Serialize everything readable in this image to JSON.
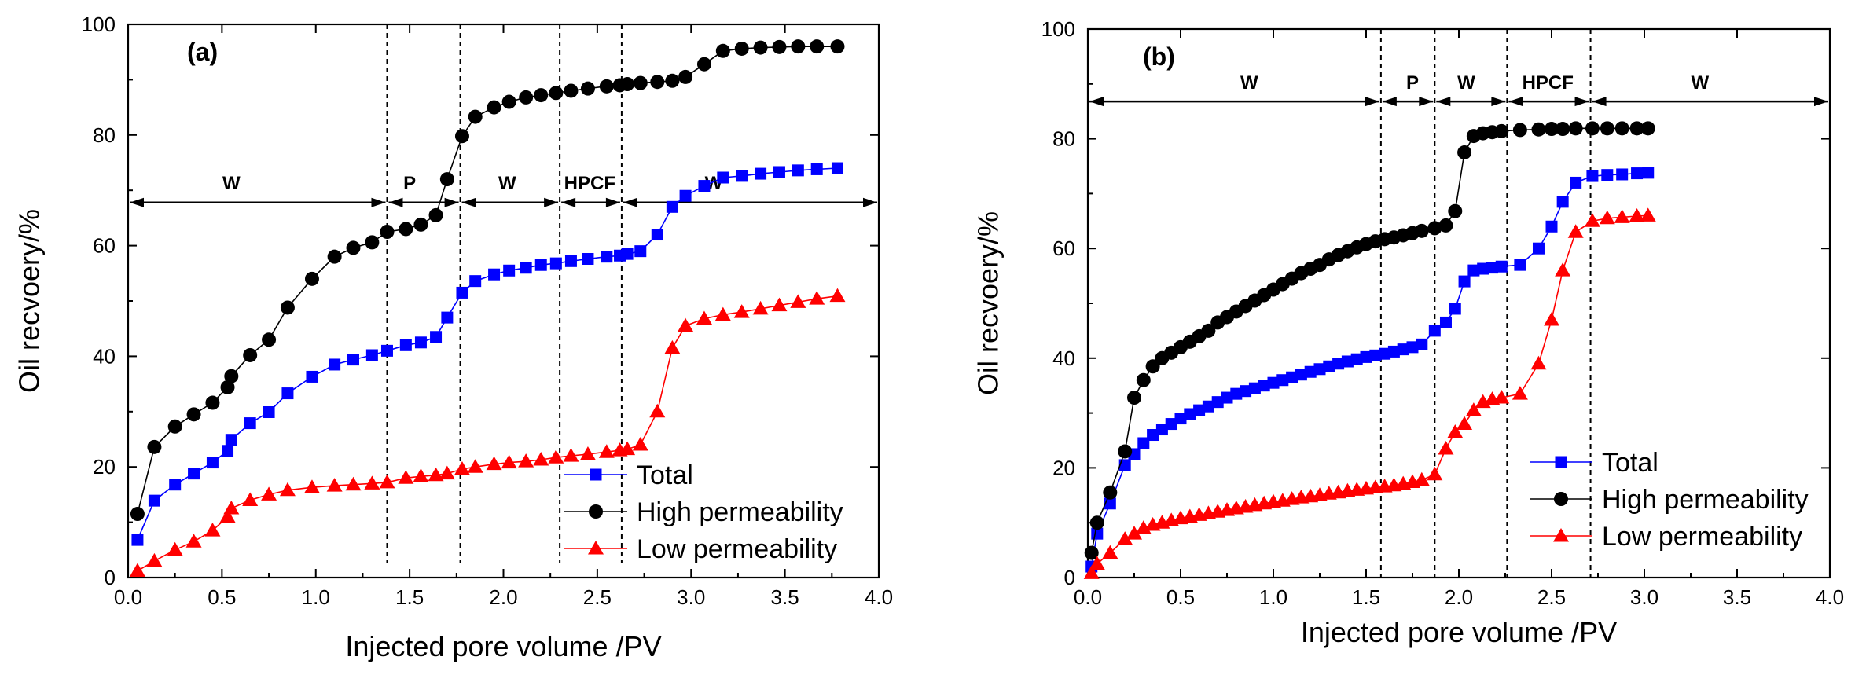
{
  "chart_data": [
    {
      "type": "line",
      "panel_label": "(a)",
      "xlabel": "Injected pore volume /PV",
      "ylabel": "Oil recvoery/%",
      "xlim": [
        0.0,
        4.0
      ],
      "ylim": [
        0,
        100
      ],
      "x_ticks": [
        "0.0",
        "0.5",
        "1.0",
        "1.5",
        "2.0",
        "2.5",
        "3.0",
        "3.5",
        "4.0"
      ],
      "y_ticks": [
        "0",
        "20",
        "40",
        "60",
        "80",
        "100"
      ],
      "legend": [
        "Total",
        "High permeability",
        "Low permeability"
      ],
      "legend_position": "bottom-right",
      "stage_boundaries": [
        1.38,
        1.77,
        2.3,
        2.63
      ],
      "stage_arrow_y": 67.8,
      "stages": [
        {
          "label": "W",
          "from": 0.0,
          "to": 1.38,
          "label_x": 0.55,
          "label_y": 71
        },
        {
          "label": "P",
          "from": 1.38,
          "to": 1.77,
          "label_x": 1.5,
          "label_y": 71
        },
        {
          "label": "W",
          "from": 1.77,
          "to": 2.3,
          "label_x": 2.02,
          "label_y": 71
        },
        {
          "label": "HPCF",
          "from": 2.3,
          "to": 2.63,
          "label_x": 2.46,
          "label_y": 71
        },
        {
          "label": "W",
          "from": 2.63,
          "to": 4.0,
          "label_x": 3.12,
          "label_y": 71
        }
      ],
      "series": [
        {
          "name": "Total",
          "color": "#0000ff",
          "marker": "square",
          "x": [
            0.05,
            0.14,
            0.25,
            0.35,
            0.45,
            0.53,
            0.55,
            0.65,
            0.75,
            0.85,
            0.98,
            1.1,
            1.2,
            1.3,
            1.38,
            1.48,
            1.56,
            1.64,
            1.7,
            1.78,
            1.85,
            1.95,
            2.03,
            2.12,
            2.2,
            2.28,
            2.36,
            2.45,
            2.55,
            2.62,
            2.66,
            2.73,
            2.82,
            2.9,
            2.97,
            3.07,
            3.17,
            3.27,
            3.37,
            3.47,
            3.57,
            3.67,
            3.78
          ],
          "y": [
            6.8,
            13.9,
            16.8,
            18.8,
            20.8,
            22.9,
            24.9,
            27.9,
            29.9,
            33.3,
            36.3,
            38.5,
            39.4,
            40.2,
            41.0,
            42.0,
            42.5,
            43.5,
            47.0,
            51.5,
            53.6,
            54.8,
            55.5,
            56.0,
            56.5,
            56.8,
            57.2,
            57.6,
            58.0,
            58.2,
            58.5,
            59.0,
            62.0,
            67.0,
            69.0,
            70.8,
            72.3,
            72.6,
            73.0,
            73.3,
            73.6,
            73.8,
            74.0
          ]
        },
        {
          "name": "High permeability",
          "color": "#000000",
          "marker": "circle",
          "x": [
            0.05,
            0.14,
            0.25,
            0.35,
            0.45,
            0.53,
            0.55,
            0.65,
            0.75,
            0.85,
            0.98,
            1.1,
            1.2,
            1.3,
            1.38,
            1.48,
            1.56,
            1.64,
            1.7,
            1.78,
            1.85,
            1.95,
            2.03,
            2.12,
            2.2,
            2.28,
            2.36,
            2.45,
            2.55,
            2.62,
            2.66,
            2.73,
            2.82,
            2.9,
            2.97,
            3.07,
            3.17,
            3.27,
            3.37,
            3.47,
            3.57,
            3.67,
            3.78
          ],
          "y": [
            11.5,
            23.6,
            27.3,
            29.5,
            31.6,
            34.4,
            36.4,
            40.2,
            43.0,
            48.8,
            54.0,
            58.0,
            59.6,
            60.6,
            62.5,
            63.0,
            63.8,
            65.5,
            72.0,
            79.8,
            83.3,
            85.0,
            86.0,
            86.8,
            87.2,
            87.6,
            88.0,
            88.4,
            88.8,
            89.0,
            89.2,
            89.4,
            89.6,
            89.8,
            90.5,
            92.8,
            95.2,
            95.6,
            95.8,
            95.9,
            96.0,
            96.0,
            96.0
          ]
        },
        {
          "name": "Low permeability",
          "color": "#ff0000",
          "marker": "triangle",
          "x": [
            0.05,
            0.14,
            0.25,
            0.35,
            0.45,
            0.53,
            0.55,
            0.65,
            0.75,
            0.85,
            0.98,
            1.1,
            1.2,
            1.3,
            1.38,
            1.48,
            1.56,
            1.64,
            1.7,
            1.78,
            1.85,
            1.95,
            2.03,
            2.12,
            2.2,
            2.28,
            2.36,
            2.45,
            2.55,
            2.62,
            2.66,
            2.73,
            2.82,
            2.9,
            2.97,
            3.07,
            3.17,
            3.27,
            3.37,
            3.47,
            3.57,
            3.67,
            3.78
          ],
          "y": [
            1.2,
            3.0,
            5.0,
            6.5,
            8.5,
            11.0,
            12.5,
            14.0,
            15.0,
            15.8,
            16.3,
            16.6,
            16.8,
            17.0,
            17.2,
            18.0,
            18.3,
            18.5,
            18.8,
            19.6,
            20.0,
            20.5,
            20.8,
            21.0,
            21.3,
            21.7,
            22.0,
            22.3,
            22.7,
            23.0,
            23.2,
            24.0,
            30.0,
            41.5,
            45.5,
            46.8,
            47.5,
            48.0,
            48.6,
            49.2,
            49.8,
            50.4,
            50.9
          ]
        }
      ]
    },
    {
      "type": "line",
      "panel_label": "(b)",
      "xlabel": "Injected pore volume /PV",
      "ylabel": "Oil recvoery/%",
      "xlim": [
        0.0,
        4.0
      ],
      "ylim": [
        0,
        100
      ],
      "x_ticks": [
        "0.0",
        "0.5",
        "1.0",
        "1.5",
        "2.0",
        "2.5",
        "3.0",
        "3.5",
        "4.0"
      ],
      "y_ticks": [
        "0",
        "20",
        "40",
        "60",
        "80",
        "100"
      ],
      "legend": [
        "Total",
        "High permeability",
        "Low permeability"
      ],
      "legend_position": "bottom-right",
      "stage_boundaries": [
        1.58,
        1.87,
        2.26,
        2.71
      ],
      "stage_arrow_y": 86.8,
      "stages": [
        {
          "label": "W",
          "from": 0.0,
          "to": 1.58,
          "label_x": 0.87,
          "label_y": 90
        },
        {
          "label": "P",
          "from": 1.58,
          "to": 1.87,
          "label_x": 1.75,
          "label_y": 90
        },
        {
          "label": "W",
          "from": 1.87,
          "to": 2.26,
          "label_x": 2.04,
          "label_y": 90
        },
        {
          "label": "HPCF",
          "from": 2.26,
          "to": 2.71,
          "label_x": 2.48,
          "label_y": 90
        },
        {
          "label": "W",
          "from": 2.71,
          "to": 4.0,
          "label_x": 3.3,
          "label_y": 90
        }
      ],
      "series": [
        {
          "name": "Total",
          "color": "#0000ff",
          "marker": "square",
          "x": [
            0.02,
            0.05,
            0.12,
            0.2,
            0.25,
            0.3,
            0.35,
            0.4,
            0.45,
            0.5,
            0.55,
            0.6,
            0.65,
            0.7,
            0.75,
            0.8,
            0.85,
            0.9,
            0.95,
            1.0,
            1.05,
            1.1,
            1.15,
            1.2,
            1.25,
            1.3,
            1.35,
            1.4,
            1.45,
            1.5,
            1.55,
            1.6,
            1.65,
            1.7,
            1.75,
            1.8,
            1.87,
            1.93,
            1.98,
            2.03,
            2.08,
            2.13,
            2.18,
            2.23,
            2.33,
            2.43,
            2.5,
            2.56,
            2.63,
            2.72,
            2.8,
            2.88,
            2.96,
            3.02
          ],
          "y": [
            2.0,
            8.0,
            13.5,
            20.5,
            22.5,
            24.5,
            26.0,
            27.0,
            28.0,
            29.0,
            29.8,
            30.5,
            31.2,
            32.0,
            32.8,
            33.5,
            34.0,
            34.5,
            35.0,
            35.5,
            36.0,
            36.5,
            37.0,
            37.5,
            38.0,
            38.5,
            39.0,
            39.4,
            39.8,
            40.2,
            40.5,
            40.8,
            41.2,
            41.6,
            42.0,
            42.5,
            45.0,
            46.5,
            49.0,
            54.0,
            56.0,
            56.3,
            56.5,
            56.7,
            57.0,
            60.0,
            64.0,
            68.5,
            72.0,
            73.2,
            73.4,
            73.5,
            73.7,
            73.8
          ]
        },
        {
          "name": "High permeability",
          "color": "#000000",
          "marker": "circle",
          "x": [
            0.02,
            0.05,
            0.12,
            0.2,
            0.25,
            0.3,
            0.35,
            0.4,
            0.45,
            0.5,
            0.55,
            0.6,
            0.65,
            0.7,
            0.75,
            0.8,
            0.85,
            0.9,
            0.95,
            1.0,
            1.05,
            1.1,
            1.15,
            1.2,
            1.25,
            1.3,
            1.35,
            1.4,
            1.45,
            1.5,
            1.55,
            1.6,
            1.65,
            1.7,
            1.75,
            1.8,
            1.87,
            1.93,
            1.98,
            2.03,
            2.08,
            2.13,
            2.18,
            2.23,
            2.33,
            2.43,
            2.5,
            2.56,
            2.63,
            2.72,
            2.8,
            2.88,
            2.96,
            3.02
          ],
          "y": [
            4.5,
            10.0,
            15.5,
            23.0,
            32.8,
            36.0,
            38.5,
            40.0,
            41.0,
            42.0,
            43.0,
            44.0,
            45.0,
            46.5,
            47.5,
            48.5,
            49.5,
            50.5,
            51.5,
            52.5,
            53.5,
            54.5,
            55.5,
            56.3,
            57.0,
            58.0,
            58.8,
            59.5,
            60.2,
            60.8,
            61.3,
            61.7,
            62.0,
            62.4,
            62.8,
            63.2,
            63.7,
            64.2,
            66.8,
            77.5,
            80.5,
            81.0,
            81.2,
            81.4,
            81.6,
            81.7,
            81.8,
            81.8,
            81.9,
            81.9,
            81.9,
            81.9,
            81.9,
            81.9
          ]
        },
        {
          "name": "Low permeability",
          "color": "#ff0000",
          "marker": "triangle",
          "x": [
            0.02,
            0.05,
            0.12,
            0.2,
            0.25,
            0.3,
            0.35,
            0.4,
            0.45,
            0.5,
            0.55,
            0.6,
            0.65,
            0.7,
            0.75,
            0.8,
            0.85,
            0.9,
            0.95,
            1.0,
            1.05,
            1.1,
            1.15,
            1.2,
            1.25,
            1.3,
            1.35,
            1.4,
            1.45,
            1.5,
            1.55,
            1.6,
            1.65,
            1.7,
            1.75,
            1.8,
            1.87,
            1.93,
            1.98,
            2.03,
            2.08,
            2.13,
            2.18,
            2.23,
            2.33,
            2.43,
            2.5,
            2.56,
            2.63,
            2.72,
            2.8,
            2.88,
            2.96,
            3.02
          ],
          "y": [
            0.8,
            2.5,
            4.5,
            7.0,
            8.0,
            9.0,
            9.6,
            10.0,
            10.4,
            10.8,
            11.1,
            11.4,
            11.7,
            12.0,
            12.3,
            12.6,
            12.9,
            13.2,
            13.5,
            13.8,
            14.0,
            14.3,
            14.6,
            14.8,
            15.0,
            15.3,
            15.5,
            15.8,
            16.0,
            16.2,
            16.4,
            16.6,
            16.8,
            17.1,
            17.4,
            17.8,
            18.8,
            23.5,
            26.5,
            28.0,
            30.5,
            32.0,
            32.5,
            32.8,
            33.5,
            39.0,
            47.0,
            56.0,
            63.0,
            65.0,
            65.5,
            65.7,
            65.9,
            66.0
          ]
        }
      ]
    }
  ]
}
